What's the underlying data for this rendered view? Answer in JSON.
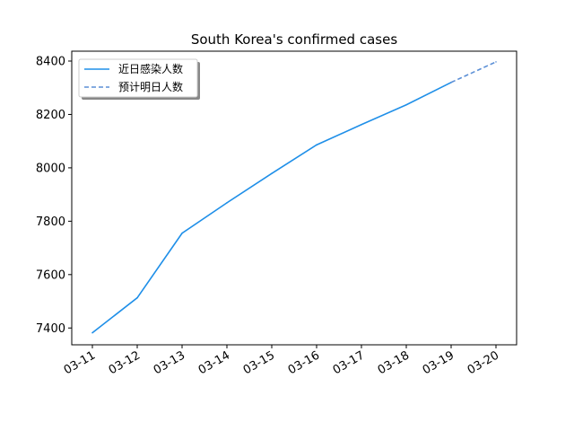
{
  "chart_data": {
    "type": "line",
    "title": "South Korea's confirmed cases",
    "xlabel": "",
    "ylabel": "",
    "categories": [
      "03-11",
      "03-12",
      "03-13",
      "03-14",
      "03-15",
      "03-16",
      "03-17",
      "03-18",
      "03-19",
      "03-20"
    ],
    "yticks": [
      "7400",
      "7600",
      "7800",
      "8000",
      "8200",
      "8400"
    ],
    "ylim": [
      7337,
      8437
    ],
    "grid": false,
    "legend_position": "top-left",
    "series": [
      {
        "name": "近日感染人数",
        "style": "solid",
        "color": "#1f8fe8",
        "x": [
          "03-11",
          "03-12",
          "03-13",
          "03-14",
          "03-15",
          "03-16",
          "03-17",
          "03-18",
          "03-19"
        ],
        "values": [
          7382,
          7513,
          7755,
          7869,
          7979,
          8086,
          8162,
          8236,
          8320
        ]
      },
      {
        "name": "预计明日人数",
        "style": "dashed",
        "color": "#5b8fd6",
        "x": [
          "03-19",
          "03-20"
        ],
        "values": [
          8320,
          8397
        ]
      }
    ]
  }
}
